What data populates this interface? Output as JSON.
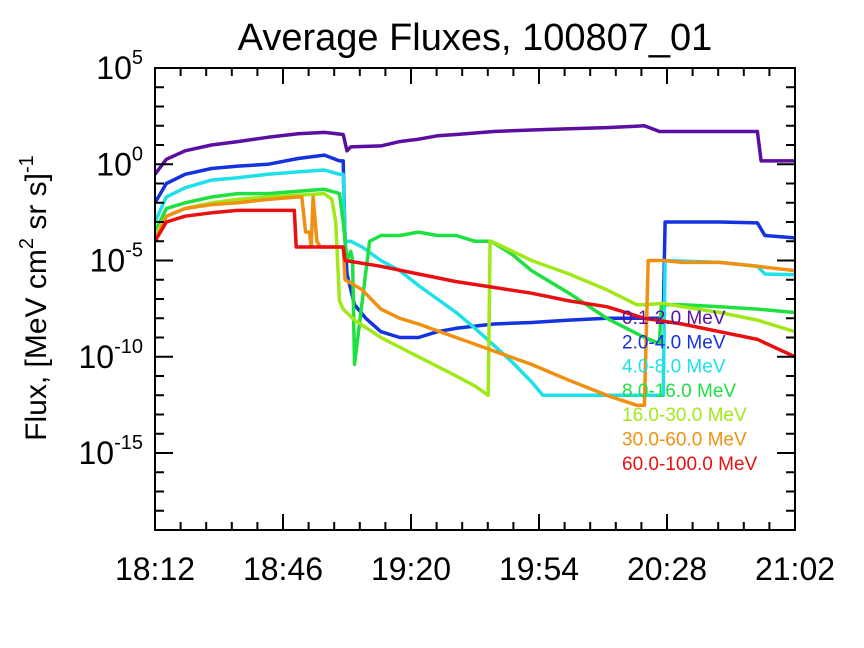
{
  "chart_data": {
    "type": "line",
    "title": "Average Fluxes, 100807_01",
    "ylabel": "Flux, [MeV cm² sr s]⁻¹",
    "ylabel_parts": {
      "main": "Flux, [MeV cm",
      "sup1": "2",
      "mid": " sr s]",
      "sup2": "-1"
    },
    "xlabel": "",
    "x_tick_labels": [
      "18:12",
      "18:46",
      "19:20",
      "19:54",
      "20:28",
      "21:02"
    ],
    "x_tick_minutes": [
      0,
      34,
      68,
      102,
      136,
      170
    ],
    "x_range_minutes": [
      0,
      170
    ],
    "y_scale": "log",
    "y_range_log10": [
      -19,
      5
    ],
    "y_tick_exponents": [
      5,
      0,
      -5,
      -10,
      -15
    ],
    "y_tick_base": "10",
    "grid": false,
    "legend_position": "right",
    "series": [
      {
        "name": "0.1-2.0 MeV",
        "color": "#5a0fa0",
        "x": [
          0,
          3,
          8,
          15,
          22,
          30,
          38,
          45,
          50,
          51,
          52,
          60,
          65,
          68,
          70,
          75,
          80,
          90,
          100,
          110,
          120,
          130,
          134,
          135,
          150,
          160,
          161,
          170
        ],
        "y": [
          0.3,
          1.8,
          5,
          10,
          15,
          25,
          38,
          45,
          35,
          5,
          8,
          9,
          15,
          18,
          20,
          30,
          35,
          50,
          60,
          70,
          80,
          100,
          50,
          50,
          50,
          50,
          1.5,
          1.5
        ]
      },
      {
        "name": "2.0-4.0 MeV",
        "color": "#1432e0",
        "x": [
          0,
          3,
          8,
          15,
          22,
          30,
          38,
          45,
          49,
          50,
          50.5,
          51,
          53,
          56,
          60,
          65,
          70,
          75,
          80,
          90,
          100,
          110,
          120,
          130,
          135,
          135.5,
          150,
          160,
          162,
          170
        ],
        "y": [
          0.01,
          0.1,
          0.3,
          0.6,
          0.8,
          1,
          2,
          3,
          1.5,
          1.5,
          0.0001,
          2e-06,
          5e-08,
          1e-08,
          2e-09,
          1e-09,
          1e-09,
          2e-09,
          3e-09,
          5e-09,
          6e-09,
          8e-09,
          1e-08,
          1e-08,
          1e-08,
          0.001,
          0.001,
          0.0009,
          0.0002,
          0.00015
        ]
      },
      {
        "name": "4.0-8.0 MeV",
        "color": "#1ee0e8",
        "x": [
          0,
          3,
          8,
          15,
          22,
          30,
          38,
          45,
          49,
          50,
          50.5,
          52,
          55,
          60,
          65,
          70,
          75,
          80,
          85,
          90,
          95,
          100,
          103,
          110,
          120,
          130,
          135,
          135.5,
          150,
          160,
          162,
          170
        ],
        "y": [
          0.001,
          0.02,
          0.06,
          0.15,
          0.2,
          0.3,
          0.4,
          0.5,
          0.3,
          0.3,
          0.0001,
          0.0001,
          5e-05,
          1e-05,
          3e-06,
          5e-07,
          1e-07,
          2e-08,
          3e-09,
          4e-10,
          5e-11,
          5e-12,
          1e-12,
          1e-12,
          1e-12,
          1e-12,
          1e-12,
          1e-05,
          8e-06,
          5e-06,
          2e-06,
          1.8e-06
        ]
      },
      {
        "name": "8.0-16.0 MeV",
        "color": "#1ee040",
        "x": [
          0,
          3,
          8,
          15,
          22,
          30,
          38,
          45,
          49,
          50,
          51,
          52,
          52.5,
          53,
          57,
          60,
          65,
          70,
          75,
          80,
          85,
          89,
          89.3,
          95,
          100,
          110,
          120,
          130,
          134,
          134.5,
          140,
          150,
          160,
          170
        ],
        "y": [
          0.0003,
          0.005,
          0.01,
          0.02,
          0.03,
          0.03,
          0.04,
          0.05,
          0.03,
          0.001,
          1e-05,
          3e-05,
          1e-05,
          4e-11,
          0.0001,
          0.0002,
          0.0002,
          0.0003,
          0.0002,
          0.0002,
          0.0001,
          0.0001,
          0.0001,
          2e-05,
          3e-06,
          2e-07,
          1e-08,
          1e-09,
          5e-10,
          5e-08,
          5e-08,
          4e-08,
          3e-08,
          2e-08
        ]
      },
      {
        "name": "16.0-30.0 MeV",
        "color": "#a0e818",
        "x": [
          0,
          3,
          8,
          15,
          22,
          30,
          38,
          45,
          47,
          48,
          49,
          50,
          53,
          60,
          70,
          80,
          85,
          88.5,
          89,
          89.3,
          95,
          100,
          110,
          120,
          128,
          130,
          135,
          140,
          150,
          160,
          170
        ],
        "y": [
          0.0002,
          0.002,
          0.005,
          0.01,
          0.015,
          0.02,
          0.025,
          0.03,
          0.015,
          0.001,
          8e-08,
          3e-08,
          8e-09,
          1e-09,
          1e-10,
          1e-11,
          3e-12,
          1e-12,
          0.0001,
          0.0001,
          3e-05,
          1e-05,
          2e-06,
          3e-07,
          5e-08,
          5e-08,
          6e-08,
          4e-08,
          2e-08,
          8e-09,
          2e-09
        ]
      },
      {
        "name": "30.0-60.0 MeV",
        "color": "#f09010",
        "x": [
          0,
          3,
          8,
          15,
          22,
          30,
          38,
          39,
          40,
          41,
          41.5,
          42,
          43,
          44,
          45,
          50,
          50.5,
          55,
          60,
          65,
          70,
          80,
          90,
          100,
          110,
          120,
          128,
          130,
          131,
          135,
          140,
          150,
          160,
          170
        ],
        "y": [
          0.0001,
          0.002,
          0.005,
          0.008,
          0.01,
          0.015,
          0.02,
          0.02,
          0.0003,
          0.0003,
          5e-05,
          0.02,
          0.0001,
          5e-05,
          5e-05,
          5e-05,
          1e-06,
          3e-07,
          3e-08,
          1e-08,
          5e-09,
          1e-09,
          2e-10,
          4e-11,
          6e-12,
          1e-12,
          3e-13,
          3e-13,
          1e-05,
          1e-05,
          8e-06,
          8e-06,
          5e-06,
          3e-06
        ]
      },
      {
        "name": "60.0-100.0 MeV",
        "color": "#e81010",
        "x": [
          0,
          3,
          8,
          15,
          22,
          30,
          37,
          37.5,
          38,
          39,
          40,
          45,
          50,
          50.5,
          60,
          70,
          80,
          90,
          100,
          110,
          120,
          130,
          140,
          150,
          160,
          170
        ],
        "y": [
          0.0001,
          0.001,
          0.002,
          0.003,
          0.004,
          0.004,
          0.004,
          5e-05,
          5e-05,
          5e-05,
          5e-05,
          5e-05,
          5e-05,
          1e-05,
          5e-06,
          2e-06,
          8e-07,
          4e-07,
          2e-07,
          8e-08,
          4e-08,
          1e-08,
          5e-09,
          2e-09,
          8e-10,
          1e-10
        ]
      }
    ]
  }
}
